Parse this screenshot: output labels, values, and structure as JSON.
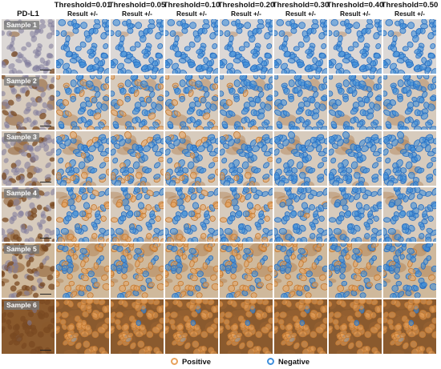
{
  "first_column_header": "PD-L1",
  "result_label": "Result +/-",
  "thresholds": [
    "Threshold=0.01",
    "Threshold=0.05",
    "Threshold=0.10",
    "Threshold=0.20",
    "Threshold=0.30",
    "Threshold=0.40",
    "Threshold=0.50"
  ],
  "threshold_values": [
    0.01,
    0.05,
    0.1,
    0.2,
    0.3,
    0.4,
    0.5
  ],
  "samples": [
    {
      "label": "Sample 1",
      "stain": 0.05
    },
    {
      "label": "Sample 2",
      "stain": 0.3
    },
    {
      "label": "Sample 3",
      "stain": 0.35
    },
    {
      "label": "Sample 4",
      "stain": 0.38
    },
    {
      "label": "Sample 5",
      "stain": 0.55
    },
    {
      "label": "Sample 6",
      "stain": 0.95
    }
  ],
  "legend": {
    "positive": "Positive",
    "negative": "Negative"
  },
  "colors": {
    "positive": "#e8a25c",
    "negative": "#3f8fdb",
    "tissue": "#d9d5d2"
  }
}
